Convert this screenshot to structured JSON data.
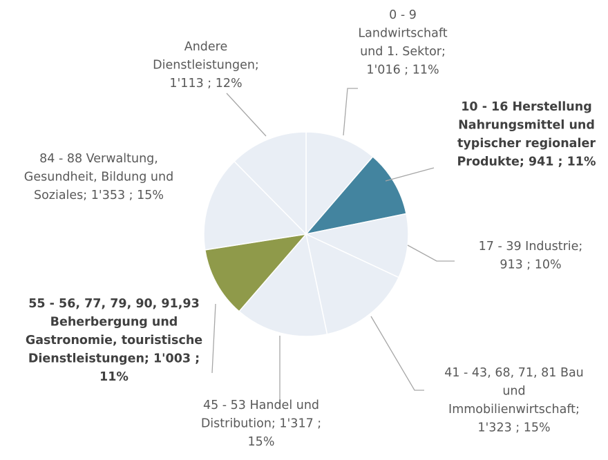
{
  "chart_data": {
    "type": "pie",
    "label_lines": [
      [
        "0 - 9",
        "Landwirtschaft",
        "und 1. Sektor;",
        "1'016 ; 11%"
      ],
      [
        "10  - 16 Herstellung",
        "Nahrungsmittel und",
        "typischer regionaler",
        "Produkte;  941 ; 11%"
      ],
      [
        "17 - 39 Industrie;",
        "913 ; 10%"
      ],
      [
        "41 - 43, 68, 71, 81 Bau",
        "und",
        "Immobilienwirtschaft;",
        "1'323 ; 15%"
      ],
      [
        "45 - 53 Handel und",
        "Distribution;  1'317 ;",
        "15%"
      ],
      [
        "55 - 56, 77, 79, 90, 91,93",
        "Beherbergung und",
        "Gastronomie, touristische",
        "Dienstleistungen;  1'003 ;",
        "11%"
      ],
      [
        "84 - 88 Verwaltung,",
        "Gesundheit, Bildung und",
        "Soziales;  1'353 ; 15%"
      ],
      [
        "Andere",
        "Dienstleistungen;",
        "1'113 ; 12%"
      ]
    ],
    "values": [
      1016,
      941,
      913,
      1323,
      1317,
      1003,
      1353,
      1113
    ],
    "colors": [
      "#e9eef5",
      "#43849f",
      "#e9eef5",
      "#e9eef5",
      "#e9eef5",
      "#8f9a4a",
      "#e9eef5",
      "#e9eef5"
    ],
    "bold": [
      false,
      true,
      false,
      false,
      false,
      true,
      false,
      false
    ]
  }
}
